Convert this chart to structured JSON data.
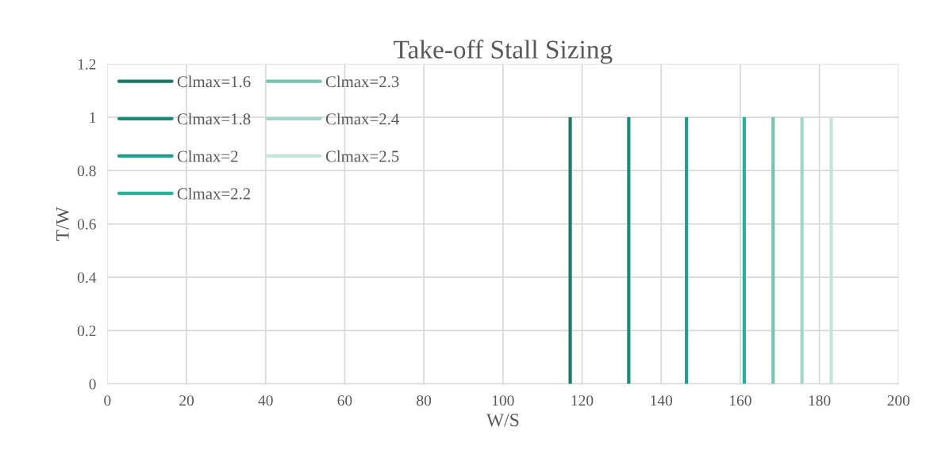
{
  "chart_data": {
    "type": "line",
    "title": "Take-off Stall Sizing",
    "xlabel": "W/S",
    "ylabel": "T/W",
    "xlim": [
      0,
      200
    ],
    "xticks": [
      0,
      20,
      40,
      60,
      80,
      100,
      120,
      140,
      160,
      180,
      200
    ],
    "ylim": [
      0,
      1.2
    ],
    "yticks": [
      {
        "value": 0,
        "label": "0"
      },
      0.2,
      0.4,
      0.6,
      0.8,
      {
        "value": 1,
        "label": "1"
      },
      1.2
    ],
    "grid": true,
    "legend": "top left",
    "marker": "none",
    "line_style": "solid",
    "series": [
      {
        "name": "Clmax=1.6",
        "color": "#1a7a6a",
        "x": [
          117,
          117
        ],
        "values": [
          0,
          1
        ]
      },
      {
        "name": "Clmax=1.8",
        "color": "#1b8c7a",
        "x": [
          131.8,
          131.8
        ],
        "values": [
          0,
          1
        ]
      },
      {
        "name": "Clmax=2",
        "color": "#1fa08b",
        "x": [
          146.4,
          146.4
        ],
        "values": [
          0,
          1
        ]
      },
      {
        "name": "Clmax=2.2",
        "color": "#22b39a",
        "x": [
          161,
          161
        ],
        "values": [
          0,
          1
        ]
      },
      {
        "name": "Clmax=2.3",
        "color": "#77c4b3",
        "x": [
          168.3,
          168.3
        ],
        "values": [
          0,
          1
        ]
      },
      {
        "name": "Clmax=2.4",
        "color": "#a3d6c9",
        "x": [
          175.6,
          175.6
        ],
        "values": [
          0,
          1
        ]
      },
      {
        "name": "Clmax=2.5",
        "color": "#c4e4dc",
        "x": [
          183,
          183
        ],
        "values": [
          0,
          1
        ]
      }
    ]
  }
}
